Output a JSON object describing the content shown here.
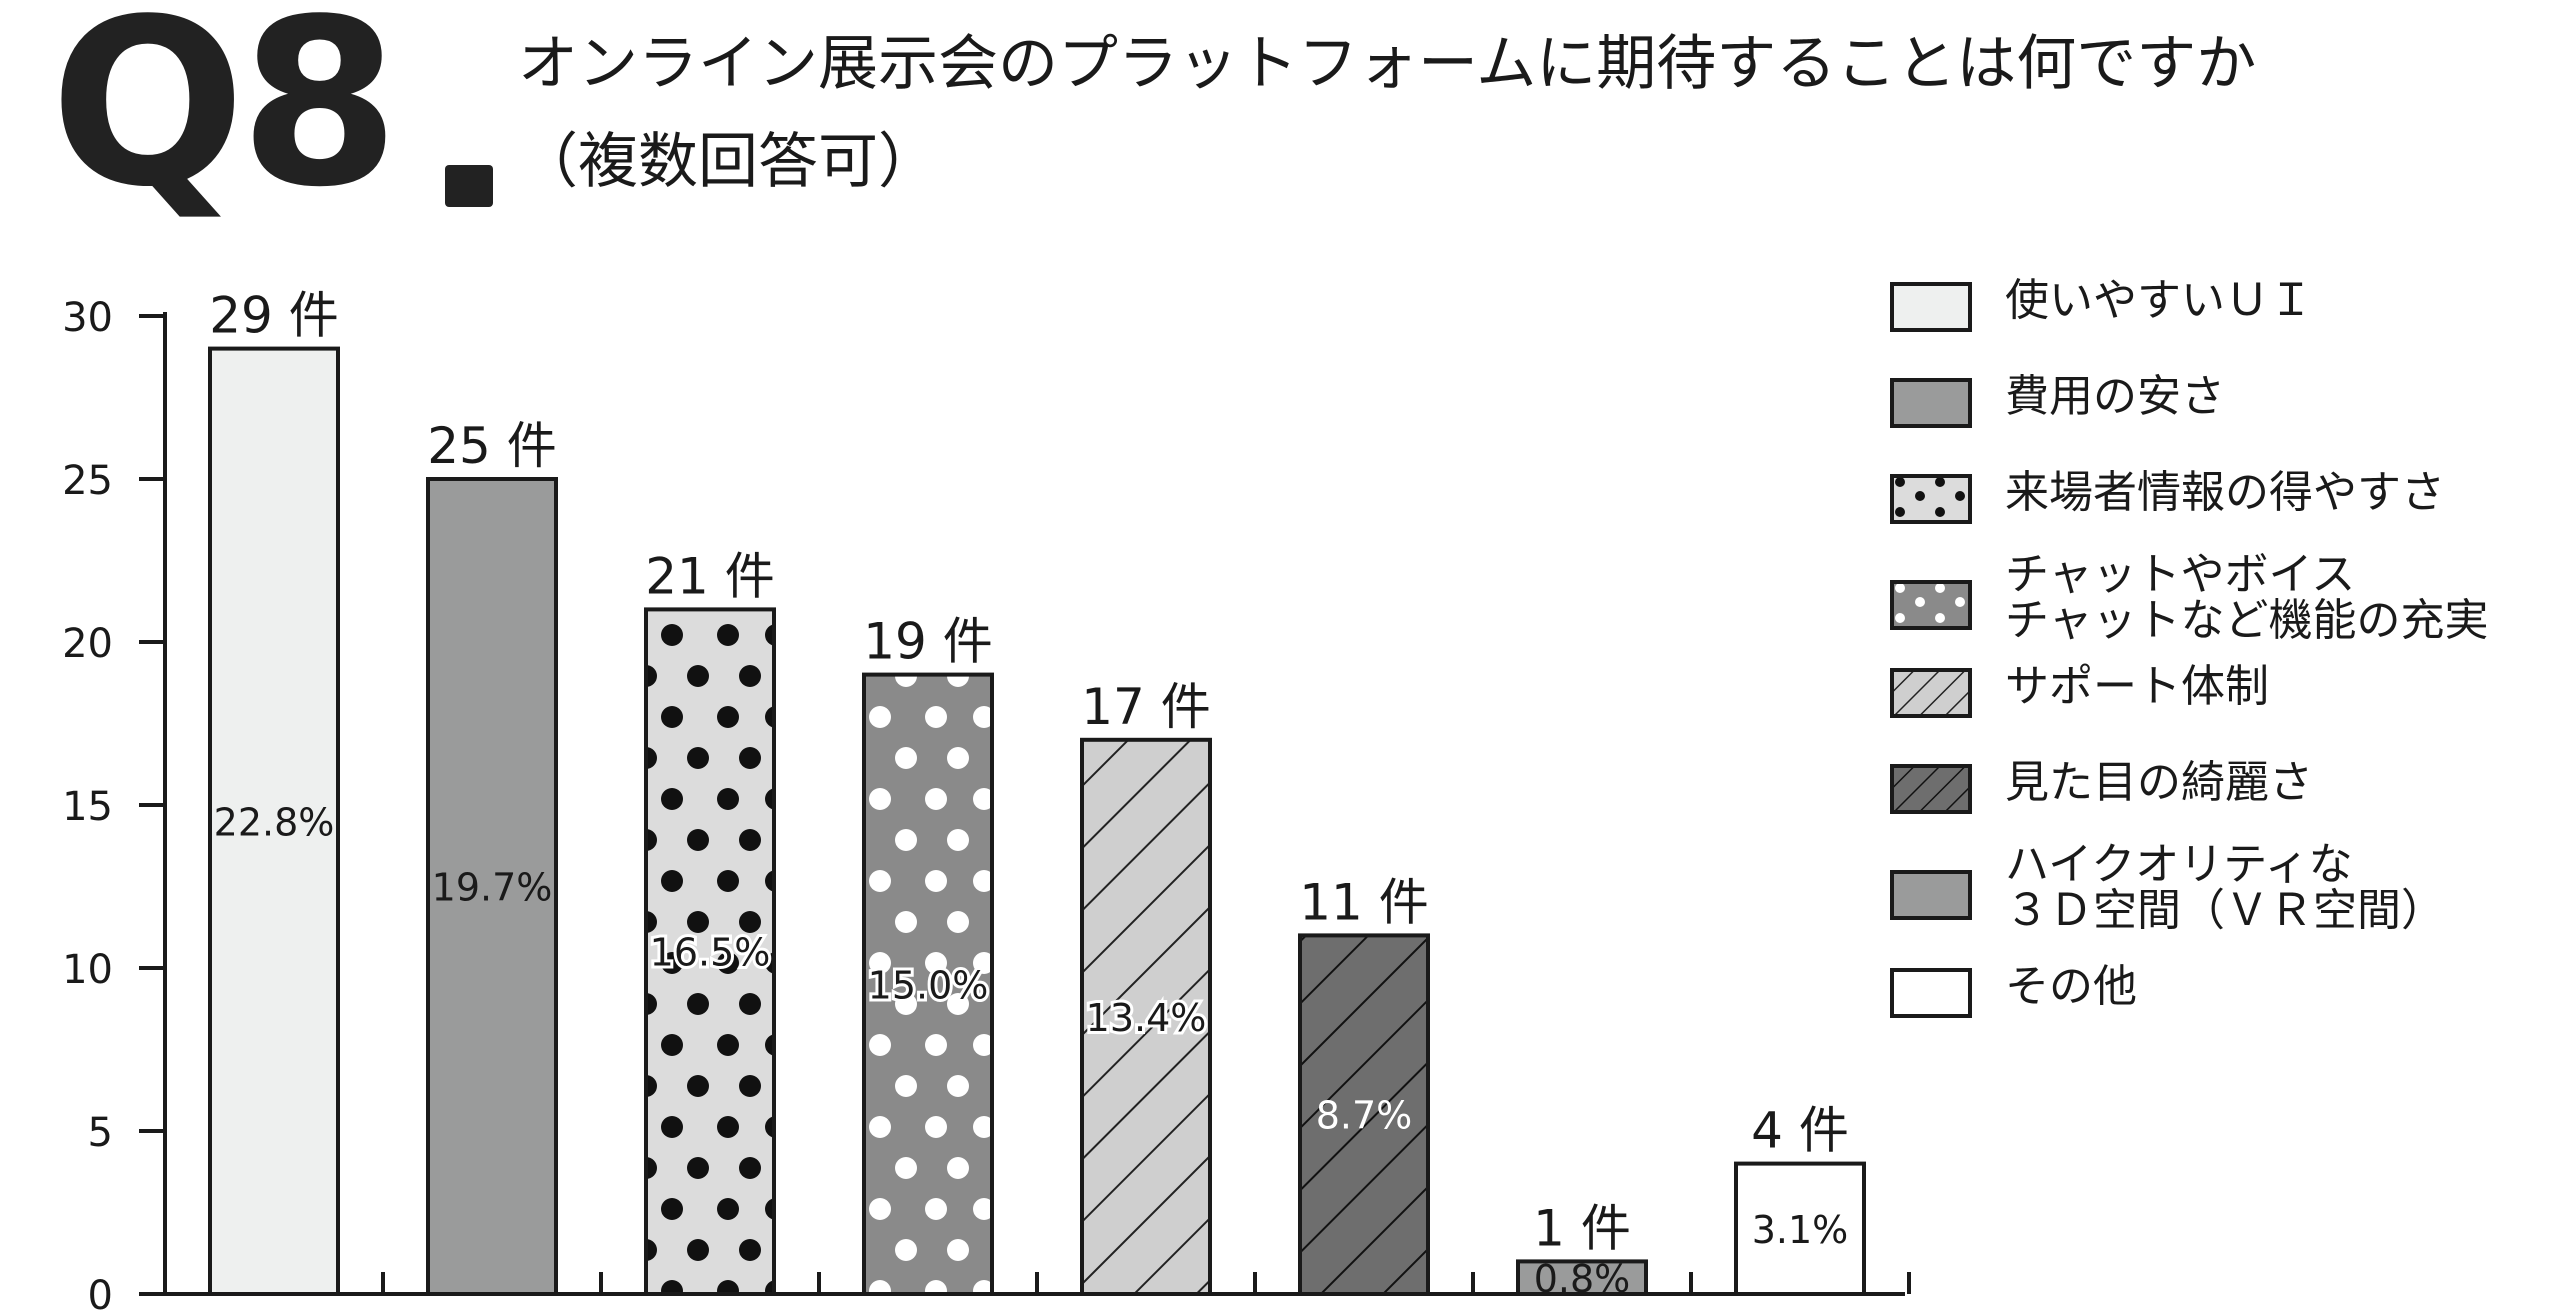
{
  "header": {
    "question_number": "Q8",
    "title_line1": "オンライン展示会のプラットフォームに期待することは何ですか",
    "title_line2": "（複数回答可）"
  },
  "chart_data": {
    "type": "bar",
    "categories": [
      "使いやすいＵＩ",
      "費用の安さ",
      "来場者情報の得やすさ",
      "チャットやボイスチャットなど機能の充実",
      "サポート体制",
      "見た目の綺麗さ",
      "ハイクオリティな３Ｄ空間（ＶＲ空間）",
      "その他"
    ],
    "values": [
      29,
      25,
      21,
      19,
      17,
      11,
      1,
      4
    ],
    "count_labels": [
      "29 件",
      "25 件",
      "21 件",
      "19 件",
      "17 件",
      "11 件",
      "1 件",
      "4 件"
    ],
    "percent_labels": [
      "22.8%",
      "19.7%",
      "16.5%",
      "15.0%",
      "13.4%",
      "8.7%",
      "0.8%",
      "3.1%"
    ],
    "ylim": [
      0,
      30
    ],
    "yticks": [
      "0",
      "5",
      "10",
      "15",
      "20",
      "25",
      "30"
    ],
    "ytick_values": [
      0,
      5,
      10,
      15,
      20,
      25,
      30
    ],
    "legend_position": "right",
    "grid": false
  },
  "legend": {
    "items": [
      {
        "lines": [
          "使いやすいＵＩ"
        ],
        "pattern": "light"
      },
      {
        "lines": [
          "費用の安さ"
        ],
        "pattern": "gray"
      },
      {
        "lines": [
          "来場者情報の得やすさ"
        ],
        "pattern": "dots-dark"
      },
      {
        "lines": [
          "チャットやボイス",
          "チャットなど機能の充実"
        ],
        "pattern": "dots-white"
      },
      {
        "lines": [
          "サポート体制"
        ],
        "pattern": "hatch-light"
      },
      {
        "lines": [
          "見た目の綺麗さ"
        ],
        "pattern": "hatch-dark"
      },
      {
        "lines": [
          "ハイクオリティな",
          "３Ｄ空間（ＶＲ空間）"
        ],
        "pattern": "gray"
      },
      {
        "lines": [
          "その他"
        ],
        "pattern": "white"
      }
    ]
  },
  "colors": {
    "axis": "#1a1a1a",
    "light": "#eef0ef",
    "gray": "#9a9b9b",
    "dots_bg": "#dcdcdc",
    "dots_dark_dot": "#111111",
    "dots_white_bg": "#8a8a8a",
    "dots_white_dot": "#ffffff",
    "hatch_light_bg": "#cfcfcf",
    "hatch_dark_bg": "#6e6e6e",
    "white": "#ffffff"
  }
}
